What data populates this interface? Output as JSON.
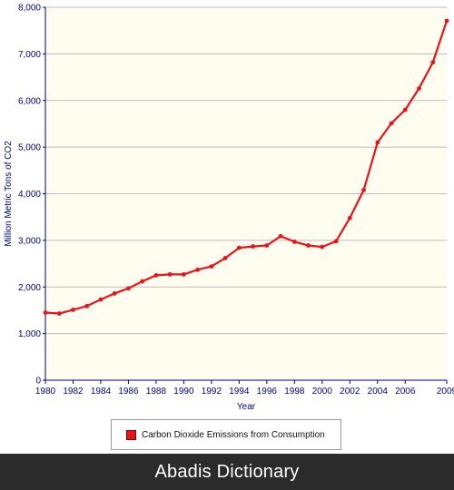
{
  "chart_data": {
    "type": "line",
    "title": "",
    "xlabel": "Year",
    "ylabel": "Million Metric Tons of CO2",
    "xlim": [
      1980,
      2009
    ],
    "ylim": [
      0,
      8000
    ],
    "x_ticks": [
      1980,
      1982,
      1984,
      1986,
      1988,
      1990,
      1992,
      1994,
      1996,
      1998,
      2000,
      2002,
      2004,
      2006,
      2009
    ],
    "y_ticks": [
      0,
      1000,
      2000,
      3000,
      4000,
      5000,
      6000,
      7000,
      8000
    ],
    "y_tick_labels": [
      "0",
      "1,000",
      "2,000",
      "3,000",
      "4,000",
      "5,000",
      "6,000",
      "7,000",
      "8,000"
    ],
    "grid": true,
    "legend_position": "bottom",
    "series": [
      {
        "name": "Carbon Dioxide Emissions from Consumption",
        "color": "#e8141a",
        "x": [
          1980,
          1981,
          1982,
          1983,
          1984,
          1985,
          1986,
          1987,
          1988,
          1989,
          1990,
          1991,
          1992,
          1993,
          1994,
          1995,
          1996,
          1997,
          1998,
          1999,
          2000,
          2001,
          2002,
          2003,
          2004,
          2005,
          2006,
          2007,
          2008,
          2009
        ],
        "values": [
          1450,
          1430,
          1510,
          1590,
          1730,
          1860,
          1970,
          2120,
          2250,
          2270,
          2270,
          2370,
          2440,
          2620,
          2840,
          2870,
          2890,
          3090,
          2970,
          2890,
          2860,
          2980,
          3480,
          4080,
          5100,
          5510,
          5800,
          6260,
          6820,
          7710
        ]
      }
    ]
  },
  "footer": {
    "text": "Abadis Dictionary"
  },
  "colors": {
    "plot_background": "#fffcf0",
    "axis": "#000080",
    "gridline": "#bdbdbd",
    "series": "#e8141a"
  }
}
